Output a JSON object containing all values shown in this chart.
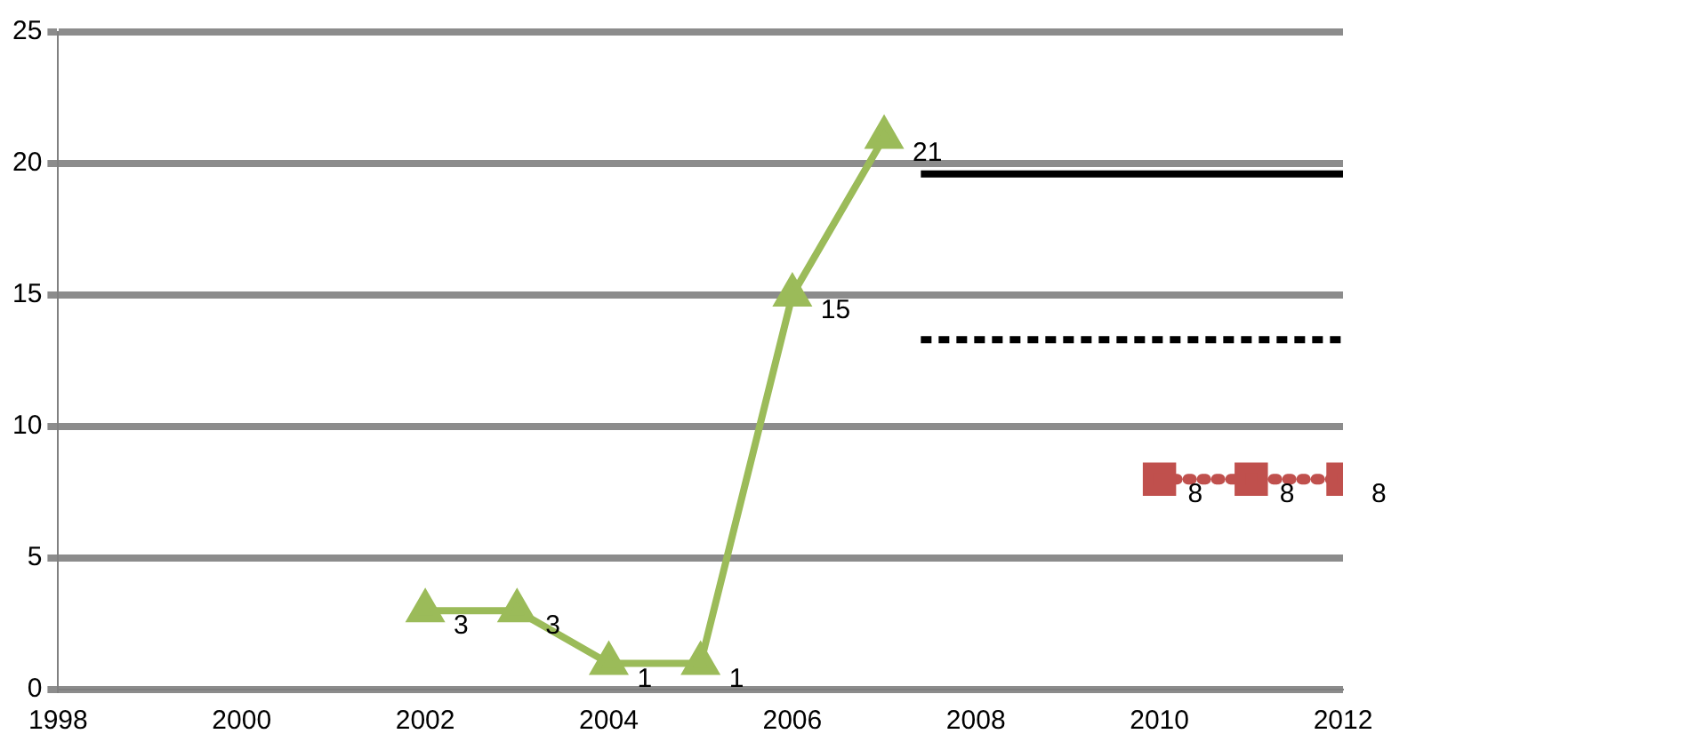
{
  "chart_data": {
    "type": "line",
    "xlim": [
      1998,
      2012
    ],
    "xticks": [
      1998,
      2000,
      2002,
      2004,
      2006,
      2008,
      2010,
      2012
    ],
    "ylim": [
      0,
      25
    ],
    "yticks": [
      0,
      5,
      10,
      15,
      20,
      25
    ],
    "grid": "y",
    "legend": false,
    "series": [
      {
        "color": "#9bbb59",
        "x": [
          2002,
          2003,
          2004,
          2005,
          2006,
          2007
        ],
        "values": [
          3,
          3,
          1,
          1,
          15,
          21
        ],
        "value_labels": [
          "3",
          "3",
          "1",
          "1",
          "15",
          "21"
        ],
        "marker": "triangle",
        "line_style": "solid"
      },
      {
        "color": "#c0504d",
        "x": [
          2010,
          2011,
          2012
        ],
        "values": [
          8,
          8,
          8
        ],
        "value_labels": [
          "8",
          "8",
          "8"
        ],
        "marker": "square",
        "line_style": "dotted"
      },
      {
        "color": "#000000",
        "x": [
          2007.4,
          2012
        ],
        "values": [
          19.6,
          19.6
        ],
        "marker": "none",
        "line_style": "solid"
      },
      {
        "color": "#000000",
        "x": [
          2007.4,
          2012
        ],
        "values": [
          13.3,
          13.3
        ],
        "marker": "none",
        "line_style": "dashed"
      }
    ]
  }
}
